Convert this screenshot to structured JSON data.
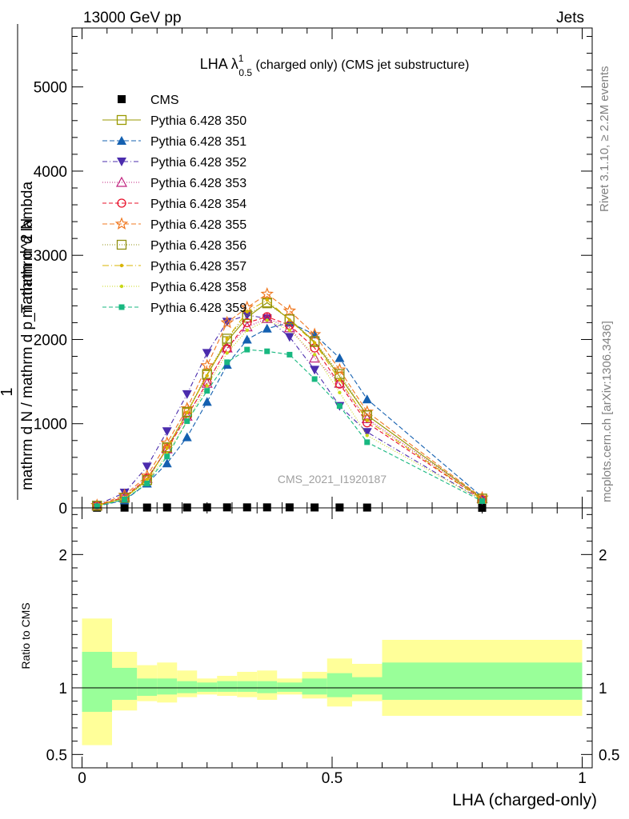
{
  "header": {
    "left": "13000 GeV pp",
    "right": "Jets"
  },
  "chart_data": [
    {
      "type": "line",
      "title_main": "LHA λ",
      "title_sup": "1",
      "title_sub": "0.5",
      "title_rest": " (charged only) (CMS jet substructure)",
      "ylabel_numerator": "1",
      "ylabel_denominator": "mathrm d N / mathrm d p_T mathrm d lambda",
      "ylabel_numerator_rot": "mathrm d^2 N",
      "ylabel_line_full": "1 / (mathrm d N / mathrm d p_T) mathrm d^2 N / mathrm d p_T mathrm d lambda",
      "ylim": [
        0,
        5700
      ],
      "xlim": [
        -0.02,
        1.02
      ],
      "yticks": [
        0,
        1000,
        2000,
        3000,
        4000,
        5000
      ],
      "ytick_labels": [
        "0",
        "1000",
        "2000",
        "3000",
        "4000",
        "5000"
      ],
      "watermark": "CMS_2021_I1920187",
      "x": [
        0.03,
        0.085,
        0.13,
        0.17,
        0.21,
        0.25,
        0.29,
        0.33,
        0.37,
        0.415,
        0.465,
        0.515,
        0.57,
        0.8
      ],
      "series": [
        {
          "name": "CMS",
          "color": "#000000",
          "marker": "square-filled",
          "dash": "",
          "values": [
            2,
            3,
            4,
            5,
            5,
            6,
            6,
            6,
            6,
            6,
            5,
            5,
            4,
            1
          ]
        },
        {
          "name": "Pythia 6.428 350",
          "color": "#999900",
          "marker": "square-open",
          "dash": "",
          "values": [
            25,
            120,
            330,
            710,
            1130,
            1580,
            1980,
            2260,
            2440,
            2240,
            1970,
            1560,
            1100,
            110
          ]
        },
        {
          "name": "Pythia 6.428 351",
          "color": "#1460b0",
          "marker": "triangle-up-filled",
          "dash": "6,3",
          "values": [
            20,
            90,
            290,
            530,
            840,
            1260,
            1700,
            2000,
            2130,
            2200,
            2060,
            1780,
            1290,
            130
          ]
        },
        {
          "name": "Pythia 6.428 352",
          "color": "#4b2cad",
          "marker": "triangle-down-filled",
          "dash": "6,3,1,3",
          "values": [
            35,
            180,
            490,
            910,
            1350,
            1840,
            2210,
            2290,
            2250,
            2030,
            1640,
            1210,
            900,
            90
          ]
        },
        {
          "name": "Pythia 6.428 353",
          "color": "#c0207e",
          "marker": "triangle-up-open",
          "dash": "1,2",
          "values": [
            25,
            130,
            350,
            700,
            1090,
            1480,
            1900,
            2150,
            2250,
            2140,
            1780,
            1480,
            1060,
            110
          ]
        },
        {
          "name": "Pythia 6.428 354",
          "color": "#e8102a",
          "marker": "circle-open",
          "dash": "5,3",
          "values": [
            25,
            130,
            350,
            700,
            1090,
            1490,
            1890,
            2200,
            2270,
            2170,
            1900,
            1470,
            1010,
            100
          ]
        },
        {
          "name": "Pythia 6.428 355",
          "color": "#f07820",
          "marker": "star-open",
          "dash": "6,3",
          "values": [
            30,
            150,
            380,
            770,
            1180,
            1690,
            2200,
            2380,
            2540,
            2340,
            2060,
            1640,
            1140,
            120
          ]
        },
        {
          "name": "Pythia 6.428 356",
          "color": "#909010",
          "marker": "square-open",
          "dash": "1,2",
          "values": [
            25,
            120,
            330,
            720,
            1140,
            1590,
            2010,
            2290,
            2430,
            2240,
            1980,
            1590,
            1100,
            110
          ]
        },
        {
          "name": "Pythia 6.428 357",
          "color": "#d8b400",
          "marker": "dot-filled",
          "dash": "8,3,1,3",
          "values": [
            25,
            120,
            340,
            710,
            1130,
            1570,
            2010,
            2330,
            2470,
            2230,
            1960,
            1520,
            1040,
            100
          ]
        },
        {
          "name": "Pythia 6.428 358",
          "color": "#c8d818",
          "marker": "dot-filled",
          "dash": "1,2",
          "values": [
            20,
            110,
            310,
            640,
            1030,
            1450,
            1840,
            2110,
            2230,
            2110,
            1820,
            1370,
            860,
            90
          ]
        },
        {
          "name": "Pythia 6.428 359",
          "color": "#18b880",
          "marker": "square-small-filled",
          "dash": "5,3",
          "values": [
            20,
            100,
            290,
            610,
            1030,
            1390,
            1730,
            1880,
            1860,
            1820,
            1530,
            1210,
            780,
            80
          ]
        }
      ]
    },
    {
      "type": "area",
      "ylabel": "Ratio to CMS",
      "xlabel": "LHA (charged-only)",
      "ylim": [
        0.4,
        2.35
      ],
      "xlim": [
        -0.02,
        1.02
      ],
      "yticks": [
        0.5,
        1,
        2
      ],
      "ytick_labels": [
        "0.5",
        "1",
        "2"
      ],
      "xticks": [
        0,
        0.5,
        1
      ],
      "xtick_labels": [
        "0",
        "0.5",
        "1"
      ],
      "bins": [
        {
          "x0": 0.0,
          "x1": 0.06,
          "stat": [
            0.82,
            1.27
          ],
          "total": [
            0.57,
            1.52
          ]
        },
        {
          "x0": 0.06,
          "x1": 0.11,
          "stat": [
            0.91,
            1.15
          ],
          "total": [
            0.83,
            1.27
          ]
        },
        {
          "x0": 0.11,
          "x1": 0.15,
          "stat": [
            0.94,
            1.07
          ],
          "total": [
            0.9,
            1.17
          ]
        },
        {
          "x0": 0.15,
          "x1": 0.19,
          "stat": [
            0.95,
            1.07
          ],
          "total": [
            0.89,
            1.19
          ]
        },
        {
          "x0": 0.19,
          "x1": 0.23,
          "stat": [
            0.96,
            1.05
          ],
          "total": [
            0.93,
            1.13
          ]
        },
        {
          "x0": 0.23,
          "x1": 0.27,
          "stat": [
            0.97,
            1.04
          ],
          "total": [
            0.95,
            1.07
          ]
        },
        {
          "x0": 0.27,
          "x1": 0.31,
          "stat": [
            0.97,
            1.05
          ],
          "total": [
            0.94,
            1.09
          ]
        },
        {
          "x0": 0.31,
          "x1": 0.35,
          "stat": [
            0.97,
            1.05
          ],
          "total": [
            0.93,
            1.12
          ]
        },
        {
          "x0": 0.35,
          "x1": 0.39,
          "stat": [
            0.96,
            1.05
          ],
          "total": [
            0.91,
            1.13
          ]
        },
        {
          "x0": 0.39,
          "x1": 0.44,
          "stat": [
            0.97,
            1.04
          ],
          "total": [
            0.95,
            1.07
          ]
        },
        {
          "x0": 0.44,
          "x1": 0.49,
          "stat": [
            0.95,
            1.07
          ],
          "total": [
            0.92,
            1.12
          ]
        },
        {
          "x0": 0.49,
          "x1": 0.54,
          "stat": [
            0.93,
            1.11
          ],
          "total": [
            0.86,
            1.22
          ]
        },
        {
          "x0": 0.54,
          "x1": 0.6,
          "stat": [
            0.95,
            1.08
          ],
          "total": [
            0.9,
            1.18
          ]
        },
        {
          "x0": 0.6,
          "x1": 1.0,
          "stat": [
            0.91,
            1.19
          ],
          "total": [
            0.79,
            1.36
          ]
        }
      ],
      "colors": {
        "stat": "#99ff99",
        "total": "#ffff99"
      }
    }
  ],
  "side": {
    "rivet": "Rivet 3.1.10, ≥ 2.2M events",
    "mcplots": "mcplots.cern.ch [arXiv:1306.3436]"
  }
}
